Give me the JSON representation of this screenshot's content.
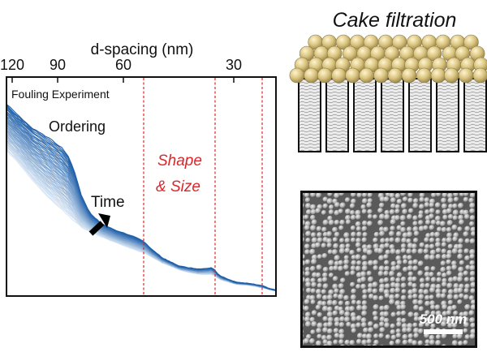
{
  "plot": {
    "top_axis_label": "d-spacing (nm)",
    "ticks": [
      {
        "label": "120",
        "d": 120
      },
      {
        "label": "90",
        "d": 90
      },
      {
        "label": "60",
        "d": 60
      },
      {
        "label": "30",
        "d": 30
      }
    ],
    "panel_label": "Fouling Experiment",
    "annotations": {
      "ordering": "Ordering",
      "time": "Time",
      "shape_line1": "Shape",
      "shape_line2": "& Size"
    },
    "colors": {
      "dark": "#1f5fa8",
      "light": "#dbe8f5",
      "guide": "#d9262b"
    }
  },
  "cake": {
    "title": "Cake filtration",
    "colors": {
      "sphere": "#d7c27d",
      "sphere_dark": "#a8924e"
    }
  },
  "sem": {
    "scale_label": "500 nm"
  }
}
